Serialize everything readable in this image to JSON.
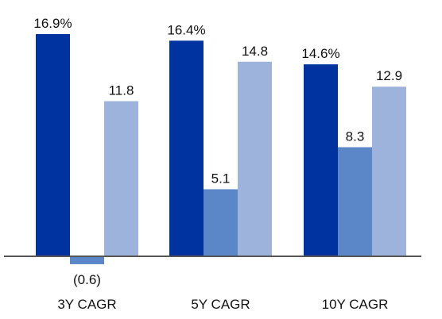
{
  "chart_data": {
    "type": "bar",
    "categories": [
      "3Y CAGR",
      "5Y CAGR",
      "10Y CAGR"
    ],
    "series": [
      {
        "values": [
          16.9,
          16.4,
          14.6
        ],
        "labels": [
          "16.9%",
          "16.4%",
          "14.6%"
        ],
        "color": "#0033A0"
      },
      {
        "values": [
          -0.6,
          5.1,
          8.3
        ],
        "labels": [
          "(0.6)",
          "5.1",
          "8.3"
        ],
        "color": "#5B87C8"
      },
      {
        "values": [
          11.8,
          14.8,
          12.9
        ],
        "labels": [
          "11.8",
          "14.8",
          "12.9"
        ],
        "color": "#9DB3DC"
      }
    ],
    "ylim": [
      -0.6,
      16.9
    ],
    "grid": false,
    "legend": "none",
    "axis_color": "#555555"
  }
}
